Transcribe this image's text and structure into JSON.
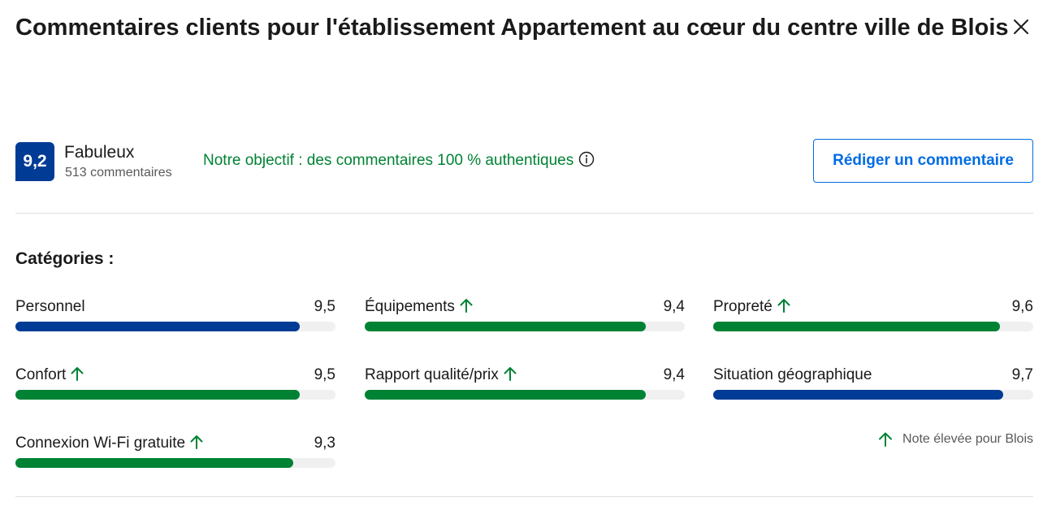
{
  "header": {
    "title": "Commentaires clients pour l'établissement Appartement au cœur du centre ville de Blois"
  },
  "summary": {
    "score": "9,2",
    "label": "Fabuleux",
    "review_count": "513 commentaires",
    "authentic_text": "Notre objectif : des commentaires 100 % authentiques",
    "write_review_label": "Rédiger un commentaire"
  },
  "categories": {
    "title": "Catégories :",
    "items": [
      {
        "name": "Personnel",
        "score": "9,5",
        "value": 9.5,
        "high": false,
        "color": "#003b95"
      },
      {
        "name": "Équipements",
        "score": "9,4",
        "value": 9.4,
        "high": true,
        "color": "#008234"
      },
      {
        "name": "Propreté",
        "score": "9,6",
        "value": 9.6,
        "high": true,
        "color": "#008234"
      },
      {
        "name": "Confort",
        "score": "9,5",
        "value": 9.5,
        "high": true,
        "color": "#008234"
      },
      {
        "name": "Rapport qualité/prix",
        "score": "9,4",
        "value": 9.4,
        "high": true,
        "color": "#008234"
      },
      {
        "name": "Situation géographique",
        "score": "9,7",
        "value": 9.7,
        "high": false,
        "color": "#003b95"
      },
      {
        "name": "Connexion Wi-Fi gratuite",
        "score": "9,3",
        "value": 9.3,
        "high": true,
        "color": "#008234"
      }
    ],
    "legend_text": "Note élevée pour Blois"
  },
  "colors": {
    "brand_blue": "#003b95",
    "high_green": "#008234",
    "link_blue": "#006ce4"
  }
}
